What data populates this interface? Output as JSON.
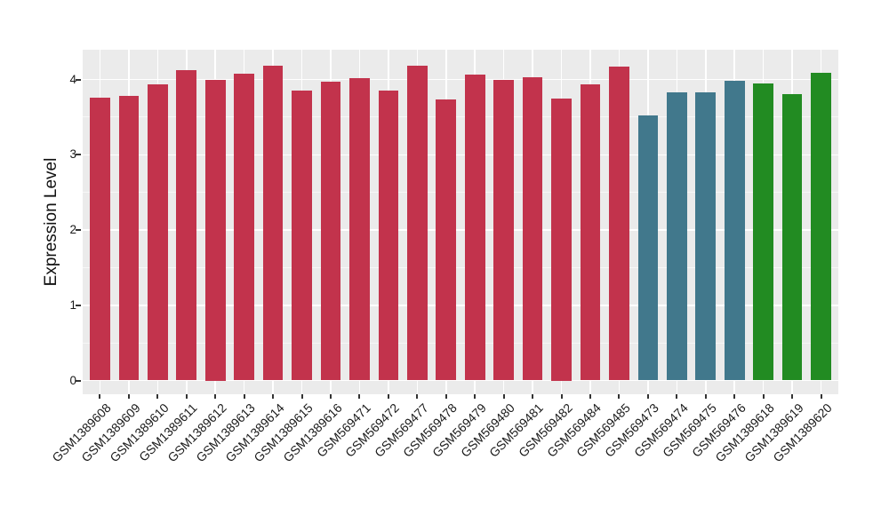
{
  "chart_data": {
    "type": "bar",
    "title": "",
    "xlabel": "",
    "ylabel": "Expression Level",
    "ylim": [
      0,
      4.4
    ],
    "yticks": [
      0,
      1,
      2,
      3,
      4
    ],
    "yticks_minor": [
      0.5,
      1.5,
      2.5,
      3.5
    ],
    "legend_position": "none",
    "grid": "white major and minor gridlines on gray panel (ggplot style)",
    "categories": [
      "GSM1389608",
      "GSM1389609",
      "GSM1389610",
      "GSM1389611",
      "GSM1389612",
      "GSM1389613",
      "GSM1389614",
      "GSM1389615",
      "GSM1389616",
      "GSM569471",
      "GSM569472",
      "GSM569477",
      "GSM569478",
      "GSM569479",
      "GSM569480",
      "GSM569481",
      "GSM569482",
      "GSM569484",
      "GSM569485",
      "GSM569473",
      "GSM569474",
      "GSM569475",
      "GSM569476",
      "GSM1389618",
      "GSM1389619",
      "GSM1389620"
    ],
    "values": [
      3.76,
      3.78,
      3.93,
      4.12,
      4.0,
      4.08,
      4.18,
      3.85,
      3.97,
      4.02,
      3.85,
      4.18,
      3.73,
      4.06,
      3.99,
      4.03,
      3.75,
      3.93,
      4.17,
      3.52,
      3.83,
      3.83,
      3.98,
      3.95,
      3.81,
      4.09
    ],
    "colors": [
      "#C2334C",
      "#C2334C",
      "#C2334C",
      "#C2334C",
      "#C2334C",
      "#C2334C",
      "#C2334C",
      "#C2334C",
      "#C2334C",
      "#C2334C",
      "#C2334C",
      "#C2334C",
      "#C2334C",
      "#C2334C",
      "#C2334C",
      "#C2334C",
      "#C2334C",
      "#C2334C",
      "#C2334C",
      "#41788C",
      "#41788C",
      "#41788C",
      "#41788C",
      "#228B22",
      "#228B22",
      "#228B22"
    ],
    "color_groups": [
      {
        "color": "#C2334C",
        "count": 19
      },
      {
        "color": "#41788C",
        "count": 4
      },
      {
        "color": "#228B22",
        "count": 3
      }
    ]
  },
  "style": {
    "background": "#FFFFFF",
    "panel_bg": "#EBEBEB",
    "grid_major": "#FFFFFF",
    "grid_minor": "rgba(255,255,255,0.6)",
    "axis_text": "#1A1A1A",
    "tick_mark": "#333333"
  }
}
